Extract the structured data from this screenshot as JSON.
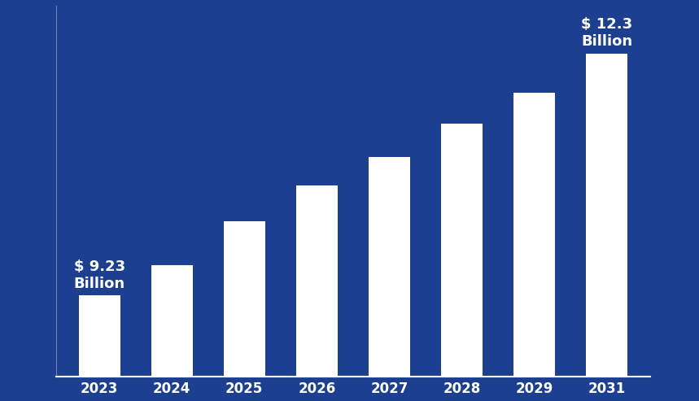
{
  "chart_data": {
    "type": "bar",
    "categories": [
      "2023",
      "2024",
      "2025",
      "2026",
      "2027",
      "2028",
      "2029",
      "2031"
    ],
    "values": [
      9.23,
      9.62,
      10.17,
      10.63,
      10.99,
      11.41,
      11.8,
      12.3
    ],
    "value_labels": [
      "$ 9.23\nBillion",
      null,
      null,
      null,
      null,
      null,
      null,
      "$ 12.3\nBillion"
    ],
    "data_labels": true,
    "color": "#ffffff",
    "ylim": [
      8.2,
      12.9
    ],
    "yticks": [],
    "tick_labels": "x",
    "grid": false
  }
}
